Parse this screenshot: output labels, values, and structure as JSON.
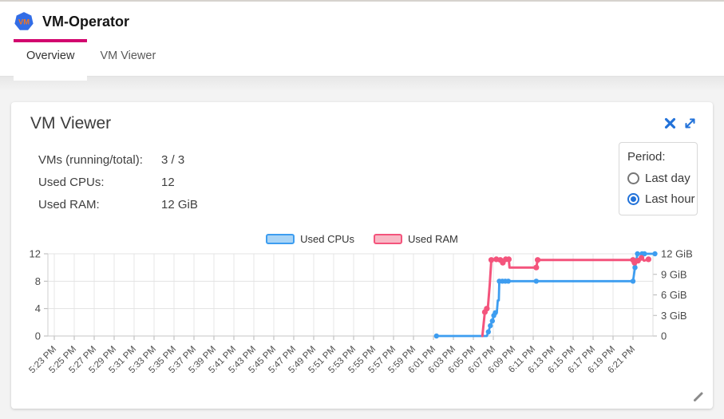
{
  "header": {
    "title": "VM-Operator",
    "logo": {
      "text": "VM",
      "bg_color": "#326de6",
      "text_color": "#f5761e"
    }
  },
  "tabs": {
    "active_index": 0,
    "indicator_color": "#d2066e",
    "items": [
      {
        "label": "Overview"
      },
      {
        "label": "VM Viewer"
      }
    ]
  },
  "panel": {
    "title": "VM Viewer",
    "action_color": "#2272d9",
    "stats": [
      {
        "label": "VMs (running/total):",
        "value": "3 / 3"
      },
      {
        "label": "Used CPUs:",
        "value": "12"
      },
      {
        "label": "Used RAM:",
        "value": "12 GiB"
      }
    ],
    "period": {
      "label": "Period:",
      "options": [
        {
          "label": "Last day",
          "selected": false
        },
        {
          "label": "Last hour",
          "selected": true
        }
      ]
    }
  },
  "chart_data": {
    "type": "line",
    "legend_position": "top",
    "grid": true,
    "minutes_per_tick": 2,
    "x_start_label": "5:23 PM",
    "x_tick_labels": [
      "5:23 PM",
      "5:25 PM",
      "5:27 PM",
      "5:29 PM",
      "5:31 PM",
      "5:33 PM",
      "5:35 PM",
      "5:37 PM",
      "5:39 PM",
      "5:41 PM",
      "5:43 PM",
      "5:45 PM",
      "5:47 PM",
      "5:49 PM",
      "5:51 PM",
      "5:53 PM",
      "5:55 PM",
      "5:57 PM",
      "5:59 PM",
      "6:01 PM",
      "6:03 PM",
      "6:05 PM",
      "6:07 PM",
      "6:09 PM",
      "6:11 PM",
      "6:13 PM",
      "6:15 PM",
      "6:17 PM",
      "6:19 PM",
      "6:21 PM"
    ],
    "y_left_ticks": [
      {
        "v": 0,
        "label": "0"
      },
      {
        "v": 4,
        "label": "4"
      },
      {
        "v": 8,
        "label": "8"
      },
      {
        "v": 12,
        "label": "12"
      }
    ],
    "y_right_ticks": [
      {
        "v": 0,
        "label": "0"
      },
      {
        "v": 3,
        "label": "3 GiB"
      },
      {
        "v": 6,
        "label": "6 GiB"
      },
      {
        "v": 9,
        "label": "9 GiB"
      },
      {
        "v": 12,
        "label": "12 GiB"
      }
    ],
    "y_range": [
      0,
      12
    ],
    "series": [
      {
        "name": "Used CPUs",
        "color": "#3d9df0",
        "fill": "#a9d4f6",
        "unit": "CPUs",
        "line": [
          [
            38.3,
            0
          ],
          [
            43.35,
            0
          ],
          [
            43.5,
            0.6
          ],
          [
            43.7,
            1.5
          ],
          [
            43.9,
            2.2
          ],
          [
            44.05,
            3.0
          ],
          [
            44.2,
            3.4
          ],
          [
            44.35,
            3.4
          ],
          [
            44.45,
            5.2
          ],
          [
            44.55,
            5.2
          ],
          [
            44.6,
            8
          ],
          [
            48.3,
            8
          ],
          [
            58.0,
            8
          ],
          [
            58.2,
            10
          ],
          [
            58.45,
            12
          ],
          [
            60.2,
            12
          ]
        ],
        "markers": [
          [
            38.3,
            0
          ],
          [
            43.5,
            0.6
          ],
          [
            43.7,
            1.5
          ],
          [
            43.9,
            2.2
          ],
          [
            44.05,
            3.0
          ],
          [
            44.2,
            3.4
          ],
          [
            44.6,
            8
          ],
          [
            44.9,
            8
          ],
          [
            45.2,
            8
          ],
          [
            45.5,
            8
          ],
          [
            48.3,
            8
          ],
          [
            58.0,
            8
          ],
          [
            58.2,
            10
          ],
          [
            58.45,
            12
          ],
          [
            58.9,
            12
          ],
          [
            59.15,
            12
          ],
          [
            60.2,
            12
          ]
        ]
      },
      {
        "name": "Used RAM",
        "color": "#f4547c",
        "fill": "#f8b9c6",
        "unit": "GiB",
        "line": [
          [
            42.9,
            0
          ],
          [
            43.15,
            3.5
          ],
          [
            43.35,
            4.0
          ],
          [
            43.45,
            4.0
          ],
          [
            43.65,
            7.6
          ],
          [
            43.8,
            11.1
          ],
          [
            44.3,
            11.2
          ],
          [
            44.7,
            11.1
          ],
          [
            44.95,
            10.7
          ],
          [
            45.25,
            11.2
          ],
          [
            45.55,
            11.2
          ],
          [
            45.62,
            10.0
          ],
          [
            48.3,
            10.0
          ],
          [
            48.45,
            11.1
          ],
          [
            58.0,
            11.1
          ],
          [
            58.15,
            10.7
          ],
          [
            58.5,
            11.0
          ],
          [
            58.85,
            11.4
          ],
          [
            59.1,
            11.0
          ],
          [
            59.55,
            11.2
          ]
        ],
        "markers": [
          [
            43.15,
            3.5
          ],
          [
            43.35,
            4.0
          ],
          [
            43.8,
            11.1
          ],
          [
            44.3,
            11.2
          ],
          [
            44.7,
            11.1
          ],
          [
            44.95,
            10.7
          ],
          [
            45.25,
            11.2
          ],
          [
            45.55,
            11.2
          ],
          [
            48.3,
            10.0
          ],
          [
            48.45,
            11.1
          ],
          [
            58.0,
            11.1
          ],
          [
            58.15,
            10.7
          ],
          [
            58.5,
            11.0
          ],
          [
            58.85,
            11.4
          ],
          [
            59.55,
            11.2
          ]
        ]
      }
    ]
  }
}
